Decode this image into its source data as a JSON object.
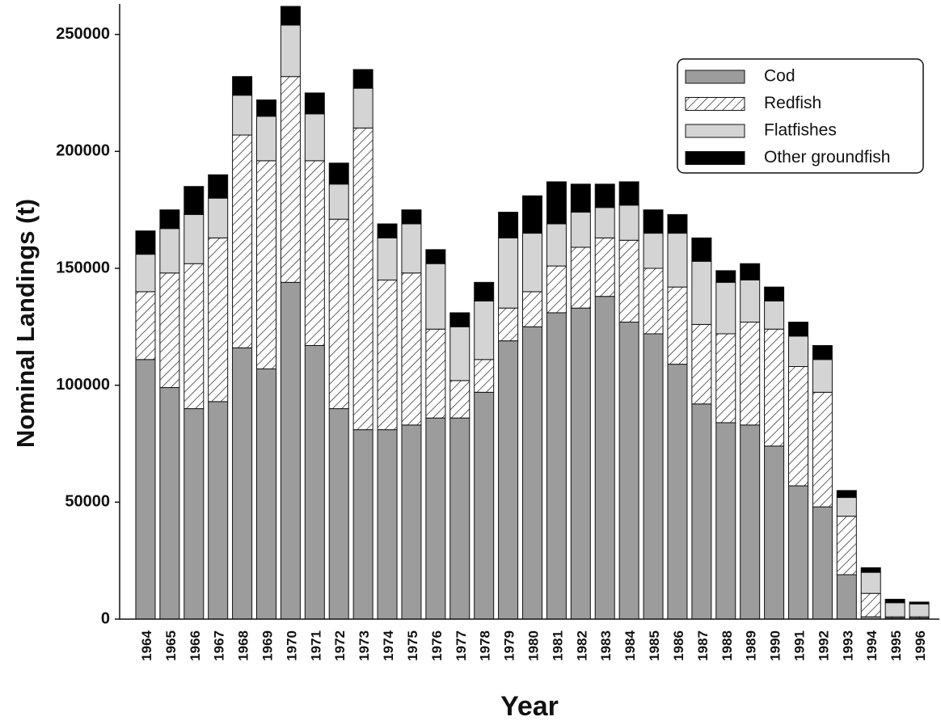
{
  "chart_data": {
    "type": "stacked-bar",
    "x_label": "Year",
    "y_label": "Nominal Landings (t)",
    "categories": [
      "1964",
      "1965",
      "1966",
      "1967",
      "1968",
      "1969",
      "1970",
      "1971",
      "1972",
      "1973",
      "1974",
      "1975",
      "1976",
      "1977",
      "1978",
      "1979",
      "1980",
      "1981",
      "1982",
      "1983",
      "1984",
      "1985",
      "1986",
      "1987",
      "1988",
      "1989",
      "1990",
      "1991",
      "1992",
      "1993",
      "1994",
      "1995",
      "1996"
    ],
    "series": [
      {
        "name": "Cod",
        "color": "#9c9c9c",
        "values": [
          111000,
          99000,
          90000,
          93000,
          116000,
          107000,
          144000,
          117000,
          90000,
          81000,
          81000,
          83000,
          86000,
          86000,
          97000,
          119000,
          125000,
          131000,
          133000,
          138000,
          127000,
          122000,
          109000,
          92000,
          84000,
          83000,
          74000,
          57000,
          48000,
          19000,
          1000,
          500,
          500
        ]
      },
      {
        "name": "Redfish",
        "color": "#ffffff",
        "pattern": "diagonal-hatch",
        "values": [
          29000,
          49000,
          62000,
          70000,
          91000,
          89000,
          88000,
          79000,
          81000,
          129000,
          64000,
          65000,
          38000,
          16000,
          14000,
          14000,
          15000,
          20000,
          26000,
          25000,
          35000,
          28000,
          33000,
          34000,
          38000,
          44000,
          50000,
          51000,
          49000,
          25000,
          10000,
          500,
          500
        ]
      },
      {
        "name": "Flatfishes",
        "color": "#d4d4d4",
        "values": [
          16000,
          19000,
          21000,
          17000,
          17000,
          19000,
          22000,
          20000,
          15000,
          17000,
          18000,
          21000,
          28000,
          23000,
          25000,
          30000,
          25000,
          18000,
          15000,
          13000,
          15000,
          15000,
          23000,
          27000,
          22000,
          18000,
          12000,
          13000,
          14000,
          8000,
          9000,
          6000,
          5500
        ]
      },
      {
        "name": "Other groundfish",
        "color": "#000000",
        "values": [
          10000,
          8000,
          12000,
          10000,
          8000,
          7000,
          8000,
          9000,
          9000,
          8000,
          6000,
          6000,
          6000,
          6000,
          8000,
          11000,
          16000,
          18000,
          12000,
          10000,
          10000,
          10000,
          8000,
          10000,
          5000,
          7000,
          6000,
          6000,
          6000,
          3000,
          2000,
          1500,
          800
        ]
      }
    ],
    "ylim": [
      0,
      263000
    ],
    "yticks": [
      0,
      50000,
      100000,
      150000,
      200000,
      250000
    ],
    "legend": "upper-right",
    "grid": false
  }
}
